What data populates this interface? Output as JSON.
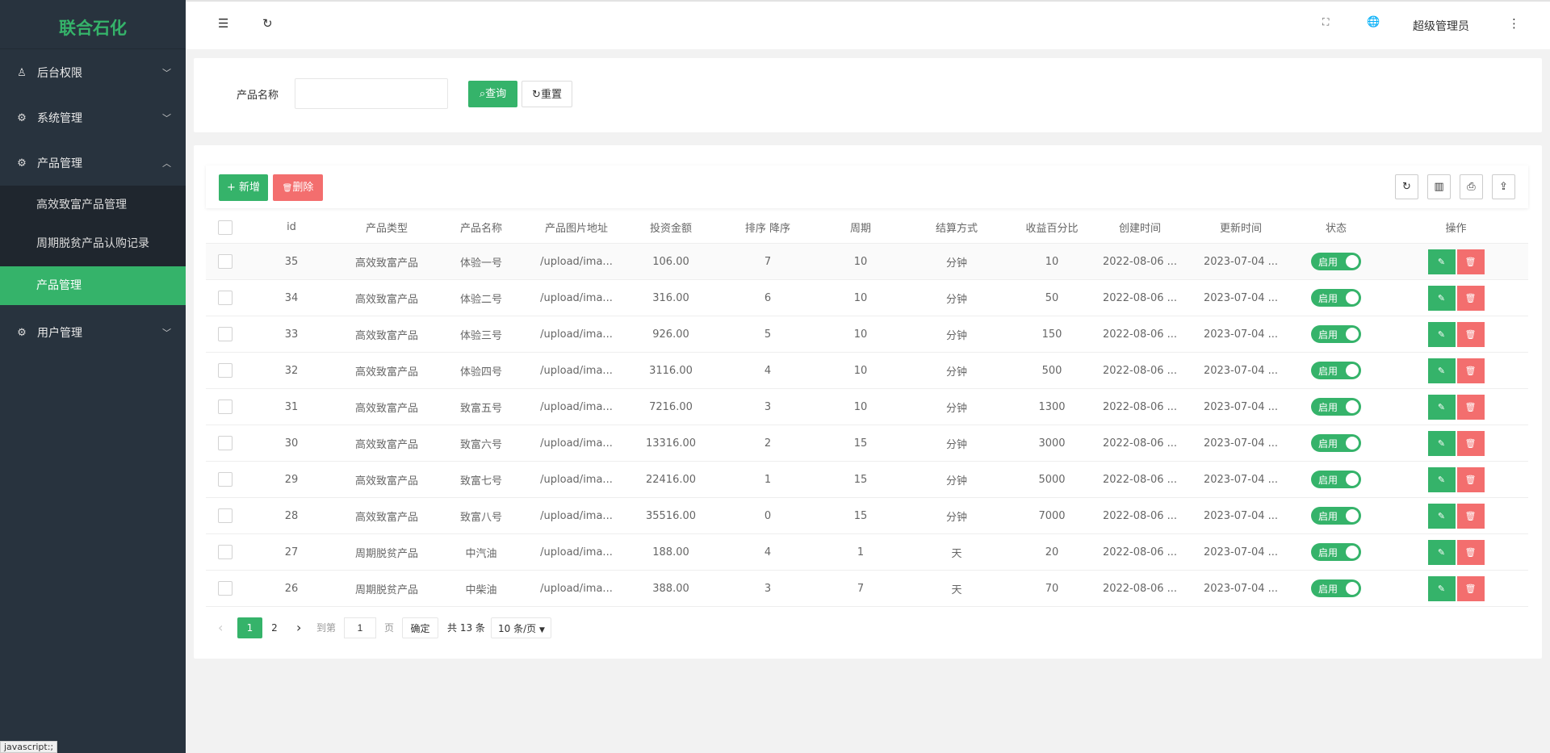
{
  "app": {
    "logo": "联合石化"
  },
  "sidebar": {
    "items": [
      {
        "label": "后台权限",
        "icon": "user-icon",
        "chevron": "v"
      },
      {
        "label": "系统管理",
        "icon": "gear-icon",
        "chevron": "v"
      },
      {
        "label": "产品管理",
        "icon": "gear-icon",
        "chevron": "^"
      },
      {
        "label": "用户管理",
        "icon": "gear-icon",
        "chevron": "v"
      }
    ],
    "sub": [
      {
        "label": "高效致富产品管理"
      },
      {
        "label": "周期脱贫产品认购记录"
      },
      {
        "label": "产品管理",
        "active": true
      }
    ]
  },
  "header": {
    "menu_icon": "☰",
    "refresh_icon": "↻",
    "fullscreen_icon": "⛶",
    "globe_icon": "🌐",
    "user": "超级管理员",
    "more_icon": "⋮"
  },
  "search": {
    "label": "产品名称",
    "value": "",
    "query": "查询",
    "reset": "重置"
  },
  "toolbar": {
    "add": "新增",
    "delete": "删除"
  },
  "table": {
    "headers": [
      "id",
      "产品类型",
      "产品名称",
      "产品图片地址",
      "投资金额",
      "排序 降序",
      "周期",
      "结算方式",
      "收益百分比",
      "创建时间",
      "更新时间",
      "状态",
      "操作"
    ],
    "rows": [
      [
        "35",
        "高效致富产品",
        "体验一号",
        "/upload/ima...",
        "106.00",
        "7",
        "10",
        "分钟",
        "10",
        "2022-08-06 ...",
        "2023-07-04 ...",
        "启用"
      ],
      [
        "34",
        "高效致富产品",
        "体验二号",
        "/upload/ima...",
        "316.00",
        "6",
        "10",
        "分钟",
        "50",
        "2022-08-06 ...",
        "2023-07-04 ...",
        "启用"
      ],
      [
        "33",
        "高效致富产品",
        "体验三号",
        "/upload/ima...",
        "926.00",
        "5",
        "10",
        "分钟",
        "150",
        "2022-08-06 ...",
        "2023-07-04 ...",
        "启用"
      ],
      [
        "32",
        "高效致富产品",
        "体验四号",
        "/upload/ima...",
        "3116.00",
        "4",
        "10",
        "分钟",
        "500",
        "2022-08-06 ...",
        "2023-07-04 ...",
        "启用"
      ],
      [
        "31",
        "高效致富产品",
        "致富五号",
        "/upload/ima...",
        "7216.00",
        "3",
        "10",
        "分钟",
        "1300",
        "2022-08-06 ...",
        "2023-07-04 ...",
        "启用"
      ],
      [
        "30",
        "高效致富产品",
        "致富六号",
        "/upload/ima...",
        "13316.00",
        "2",
        "15",
        "分钟",
        "3000",
        "2022-08-06 ...",
        "2023-07-04 ...",
        "启用"
      ],
      [
        "29",
        "高效致富产品",
        "致富七号",
        "/upload/ima...",
        "22416.00",
        "1",
        "15",
        "分钟",
        "5000",
        "2022-08-06 ...",
        "2023-07-04 ...",
        "启用"
      ],
      [
        "28",
        "高效致富产品",
        "致富八号",
        "/upload/ima...",
        "35516.00",
        "0",
        "15",
        "分钟",
        "7000",
        "2022-08-06 ...",
        "2023-07-04 ...",
        "启用"
      ],
      [
        "27",
        "周期脱贫产品",
        "中汽油",
        "/upload/ima...",
        "188.00",
        "4",
        "1",
        "天",
        "20",
        "2022-08-06 ...",
        "2023-07-04 ...",
        "启用"
      ],
      [
        "26",
        "周期脱贫产品",
        "中柴油",
        "/upload/ima...",
        "388.00",
        "3",
        "7",
        "天",
        "70",
        "2022-08-06 ...",
        "2023-07-04 ...",
        "启用"
      ]
    ]
  },
  "pagination": {
    "pages": [
      "1",
      "2"
    ],
    "current": "1",
    "goto_label": "到第",
    "goto_value": "1",
    "page_label": "页",
    "confirm": "确定",
    "total": "共 13 条",
    "page_size": "10 条/页"
  },
  "status_bar": {
    "text": "javascript:;"
  },
  "colors": {
    "accent": "#35b36a",
    "danger": "#f36e6e",
    "sidebar": "#28333e"
  }
}
